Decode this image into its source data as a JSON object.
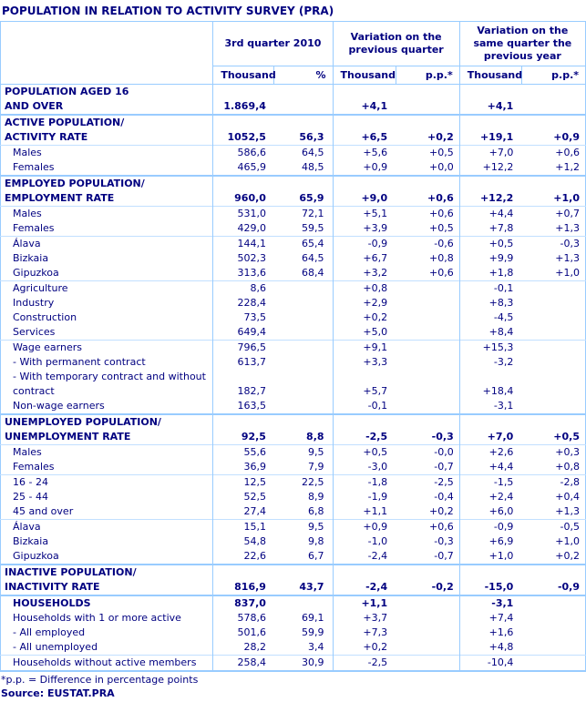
{
  "title": "POPULATION IN RELATION TO ACTIVITY SURVEY (PRA)",
  "colors": {
    "text_navy": "#000080",
    "border_blue": "#99ccff",
    "border_light_blue": "#c2e0ff",
    "background": "#ffffff"
  },
  "table": {
    "col_groups": [
      {
        "label": "3rd quarter\n2010"
      },
      {
        "label": "Variation on the\nprevious quarter"
      },
      {
        "label": "Variation on the same\nquarter the previous\nyear"
      }
    ],
    "sub_headers": [
      "Thousand",
      "%",
      "Thousand",
      "p.p.*",
      "Thousand",
      "p.p.*"
    ],
    "rows": [
      {
        "label": "POPULATION AGED 16\nAND OVER",
        "values": [
          "1.869,4",
          "",
          "+4,1",
          "",
          "+4,1",
          ""
        ],
        "bold": true,
        "indent": false,
        "sep": "none"
      },
      {
        "label": "ACTIVE POPULATION/\nACTIVITY RATE",
        "values": [
          "1052,5",
          "56,3",
          "+6,5",
          "+0,2",
          "+19,1",
          "+0,9"
        ],
        "bold": true,
        "indent": false,
        "sep": "thick"
      },
      {
        "label": "Males",
        "values": [
          "586,6",
          "64,5",
          "+5,6",
          "+0,5",
          "+7,0",
          "+0,6"
        ],
        "bold": false,
        "indent": true,
        "sep": "thin"
      },
      {
        "label": "Females",
        "values": [
          "465,9",
          "48,5",
          "+0,9",
          "+0,0",
          "+12,2",
          "+1,2"
        ],
        "bold": false,
        "indent": true,
        "sep": "none"
      },
      {
        "label": "EMPLOYED POPULATION/\nEMPLOYMENT RATE",
        "values": [
          "960,0",
          "65,9",
          "+9,0",
          "+0,6",
          "+12,2",
          "+1,0"
        ],
        "bold": true,
        "indent": false,
        "sep": "thick"
      },
      {
        "label": "Males",
        "values": [
          "531,0",
          "72,1",
          "+5,1",
          "+0,6",
          "+4,4",
          "+0,7"
        ],
        "bold": false,
        "indent": true,
        "sep": "thin"
      },
      {
        "label": "Females",
        "values": [
          "429,0",
          "59,5",
          "+3,9",
          "+0,5",
          "+7,8",
          "+1,3"
        ],
        "bold": false,
        "indent": true,
        "sep": "none"
      },
      {
        "label": "Álava",
        "values": [
          "144,1",
          "65,4",
          "-0,9",
          "-0,6",
          "+0,5",
          "-0,3"
        ],
        "bold": false,
        "indent": true,
        "sep": "thin"
      },
      {
        "label": "Bizkaia",
        "values": [
          "502,3",
          "64,5",
          "+6,7",
          "+0,8",
          "+9,9",
          "+1,3"
        ],
        "bold": false,
        "indent": true,
        "sep": "none"
      },
      {
        "label": "Gipuzkoa",
        "values": [
          "313,6",
          "68,4",
          "+3,2",
          "+0,6",
          "+1,8",
          "+1,0"
        ],
        "bold": false,
        "indent": true,
        "sep": "none"
      },
      {
        "label": "Agriculture",
        "values": [
          "8,6",
          "",
          "+0,8",
          "",
          "-0,1",
          ""
        ],
        "bold": false,
        "indent": true,
        "sep": "thin"
      },
      {
        "label": "Industry",
        "values": [
          "228,4",
          "",
          "+2,9",
          "",
          "+8,3",
          ""
        ],
        "bold": false,
        "indent": true,
        "sep": "none"
      },
      {
        "label": "Construction",
        "values": [
          "73,5",
          "",
          "+0,2",
          "",
          "-4,5",
          ""
        ],
        "bold": false,
        "indent": true,
        "sep": "none"
      },
      {
        "label": "Services",
        "values": [
          "649,4",
          "",
          "+5,0",
          "",
          "+8,4",
          ""
        ],
        "bold": false,
        "indent": true,
        "sep": "none"
      },
      {
        "label": "Wage earners",
        "values": [
          "796,5",
          "",
          "+9,1",
          "",
          "+15,3",
          ""
        ],
        "bold": false,
        "indent": true,
        "sep": "thin"
      },
      {
        "label": "- With permanent contract",
        "values": [
          "613,7",
          "",
          "+3,3",
          "",
          "-3,2",
          ""
        ],
        "bold": false,
        "indent": true,
        "sep": "none"
      },
      {
        "label": "- With temporary contract and without\ncontract",
        "values": [
          "182,7",
          "",
          "+5,7",
          "",
          "+18,4",
          ""
        ],
        "bold": false,
        "indent": true,
        "sep": "none"
      },
      {
        "label": "Non-wage earners",
        "values": [
          "163,5",
          "",
          "-0,1",
          "",
          "-3,1",
          ""
        ],
        "bold": false,
        "indent": true,
        "sep": "none"
      },
      {
        "label": "UNEMPLOYED POPULATION/\nUNEMPLOYMENT RATE",
        "values": [
          "92,5",
          "8,8",
          "-2,5",
          "-0,3",
          "+7,0",
          "+0,5"
        ],
        "bold": true,
        "indent": false,
        "sep": "thick"
      },
      {
        "label": "Males",
        "values": [
          "55,6",
          "9,5",
          "+0,5",
          "-0,0",
          "+2,6",
          "+0,3"
        ],
        "bold": false,
        "indent": true,
        "sep": "thin"
      },
      {
        "label": "Females",
        "values": [
          "36,9",
          "7,9",
          "-3,0",
          "-0,7",
          "+4,4",
          "+0,8"
        ],
        "bold": false,
        "indent": true,
        "sep": "none"
      },
      {
        "label": "16 - 24",
        "values": [
          "12,5",
          "22,5",
          "-1,8",
          "-2,5",
          "-1,5",
          "-2,8"
        ],
        "bold": false,
        "indent": true,
        "sep": "thin"
      },
      {
        "label": "25 - 44",
        "values": [
          "52,5",
          "8,9",
          "-1,9",
          "-0,4",
          "+2,4",
          "+0,4"
        ],
        "bold": false,
        "indent": true,
        "sep": "none"
      },
      {
        "label": "45 and over",
        "values": [
          "27,4",
          "6,8",
          "+1,1",
          "+0,2",
          "+6,0",
          "+1,3"
        ],
        "bold": false,
        "indent": true,
        "sep": "none"
      },
      {
        "label": "Álava",
        "values": [
          "15,1",
          "9,5",
          "+0,9",
          "+0,6",
          "-0,9",
          "-0,5"
        ],
        "bold": false,
        "indent": true,
        "sep": "thin"
      },
      {
        "label": "Bizkaia",
        "values": [
          "54,8",
          "9,8",
          "-1,0",
          "-0,3",
          "+6,9",
          "+1,0"
        ],
        "bold": false,
        "indent": true,
        "sep": "none"
      },
      {
        "label": "Gipuzkoa",
        "values": [
          "22,6",
          "6,7",
          "-2,4",
          "-0,7",
          "+1,0",
          "+0,2"
        ],
        "bold": false,
        "indent": true,
        "sep": "none"
      },
      {
        "label": "INACTIVE POPULATION/\nINACTIVITY RATE",
        "values": [
          "816,9",
          "43,7",
          "-2,4",
          "-0,2",
          "-15,0",
          "-0,9"
        ],
        "bold": true,
        "indent": false,
        "sep": "thick"
      },
      {
        "label": "HOUSEHOLDS",
        "values": [
          "837,0",
          "",
          "+1,1",
          "",
          "-3,1",
          ""
        ],
        "bold": true,
        "indent": true,
        "sep": "thick"
      },
      {
        "label": "Households with 1 or more active",
        "values": [
          "578,6",
          "69,1",
          "+3,7",
          "",
          "+7,4",
          ""
        ],
        "bold": false,
        "indent": true,
        "sep": "none"
      },
      {
        "label": "- All employed",
        "values": [
          "501,6",
          "59,9",
          "+7,3",
          "",
          "+1,6",
          ""
        ],
        "bold": false,
        "indent": true,
        "sep": "none"
      },
      {
        "label": "- All unemployed",
        "values": [
          "28,2",
          "3,4",
          "+0,2",
          "",
          "+4,8",
          ""
        ],
        "bold": false,
        "indent": true,
        "sep": "none"
      },
      {
        "label": "Households without active members",
        "values": [
          "258,4",
          "30,9",
          "-2,5",
          "",
          "-10,4",
          ""
        ],
        "bold": false,
        "indent": true,
        "sep": "thin"
      }
    ]
  },
  "footnotes": {
    "pp_note": "*p.p. = Difference in percentage points",
    "source": "Source: EUSTAT.PRA"
  }
}
